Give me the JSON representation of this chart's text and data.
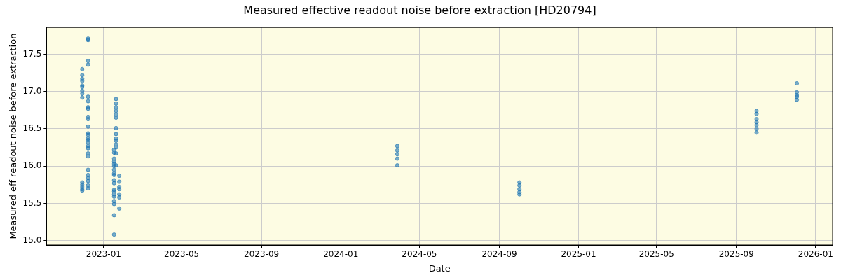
{
  "chart_data": {
    "type": "scatter",
    "title": "Measured effective readout noise before extraction [HD20794]",
    "xlabel": "Date",
    "ylabel": "Measured eff readout noise before extraction",
    "xlim": [
      "2022-10-05",
      "2026-01-27"
    ],
    "xticks": [
      "2023-01",
      "2023-05",
      "2023-09",
      "2024-01",
      "2024-05",
      "2024-09",
      "2025-01",
      "2025-05",
      "2025-09",
      "2026-01"
    ],
    "ylim": [
      14.94,
      17.86
    ],
    "yticks": [
      {
        "value": 15,
        "label": "15.0"
      },
      {
        "value": 15.5,
        "label": "15.5"
      },
      {
        "value": 16,
        "label": "16.0"
      },
      {
        "value": 16.5,
        "label": "16.5"
      },
      {
        "value": 17,
        "label": "17.0"
      },
      {
        "value": 17.5,
        "label": "17.5"
      }
    ],
    "grid": true,
    "legend": false,
    "marker": "circle",
    "series": [
      {
        "color": "#1f77b4",
        "x": [
          "2022-11-29",
          "2022-11-29",
          "2022-11-29",
          "2022-11-29",
          "2022-11-29",
          "2022-11-29",
          "2022-11-29",
          "2022-11-29",
          "2022-11-29",
          "2022-11-29",
          "2022-11-29",
          "2022-11-29",
          "2022-11-29",
          "2022-11-29",
          "2022-12-08",
          "2022-12-08",
          "2022-12-08",
          "2022-12-08",
          "2022-12-08",
          "2022-12-08",
          "2022-12-08",
          "2022-12-08",
          "2022-12-08",
          "2022-12-08",
          "2022-12-08",
          "2022-12-08",
          "2022-12-08",
          "2022-12-08",
          "2022-12-08",
          "2022-12-08",
          "2022-12-08",
          "2022-12-08",
          "2022-12-08",
          "2022-12-08",
          "2022-12-08",
          "2022-12-08",
          "2022-12-08",
          "2022-12-08",
          "2022-12-08",
          "2022-12-08",
          "2023-01-17",
          "2023-01-17",
          "2023-01-17",
          "2023-01-17",
          "2023-01-17",
          "2023-01-17",
          "2023-01-17",
          "2023-01-17",
          "2023-01-17",
          "2023-01-17",
          "2023-01-17",
          "2023-01-17",
          "2023-01-17",
          "2023-01-17",
          "2023-01-17",
          "2023-01-17",
          "2023-01-17",
          "2023-01-17",
          "2023-01-17",
          "2023-01-20",
          "2023-01-20",
          "2023-01-20",
          "2023-01-20",
          "2023-01-20",
          "2023-01-20",
          "2023-01-20",
          "2023-01-20",
          "2023-01-20",
          "2023-01-20",
          "2023-01-20",
          "2023-01-20",
          "2023-01-20",
          "2023-01-20",
          "2023-01-25",
          "2023-01-25",
          "2023-01-25",
          "2023-01-25",
          "2023-01-25",
          "2023-01-25",
          "2023-01-25",
          "2024-03-28",
          "2024-03-28",
          "2024-03-28",
          "2024-03-28",
          "2024-03-28",
          "2024-10-02",
          "2024-10-02",
          "2024-10-02",
          "2024-10-02",
          "2024-10-02",
          "2025-10-02",
          "2025-10-02",
          "2025-10-02",
          "2025-10-02",
          "2025-10-02",
          "2025-10-02",
          "2025-10-02",
          "2025-12-03",
          "2025-12-03",
          "2025-12-03",
          "2025-12-03",
          "2025-12-03"
        ],
        "values": [
          17.3,
          17.22,
          17.17,
          17.14,
          17.08,
          17.06,
          17.01,
          16.97,
          16.92,
          15.78,
          15.75,
          15.72,
          15.69,
          15.67,
          17.71,
          17.69,
          17.41,
          17.36,
          16.93,
          16.87,
          16.79,
          16.77,
          16.66,
          16.63,
          16.53,
          16.44,
          16.42,
          16.37,
          16.35,
          16.32,
          16.27,
          16.24,
          16.17,
          16.13,
          15.95,
          15.88,
          15.84,
          15.8,
          15.74,
          15.7,
          15.34,
          15.08,
          15.49,
          15.53,
          15.59,
          15.62,
          15.66,
          15.68,
          15.77,
          15.81,
          15.88,
          15.9,
          15.95,
          16.0,
          16.03,
          16.06,
          16.1,
          16.18,
          16.22,
          16.9,
          16.84,
          16.79,
          16.74,
          16.69,
          16.65,
          16.51,
          16.43,
          16.37,
          16.34,
          16.29,
          16.25,
          16.17,
          16.01,
          15.87,
          15.79,
          15.72,
          15.69,
          15.62,
          15.58,
          15.43,
          16.27,
          16.21,
          16.16,
          16.1,
          16.01,
          15.78,
          15.74,
          15.69,
          15.65,
          15.62,
          16.74,
          16.7,
          16.63,
          16.59,
          16.55,
          16.5,
          16.45,
          17.11,
          16.99,
          16.95,
          16.93,
          16.89
        ]
      }
    ]
  }
}
